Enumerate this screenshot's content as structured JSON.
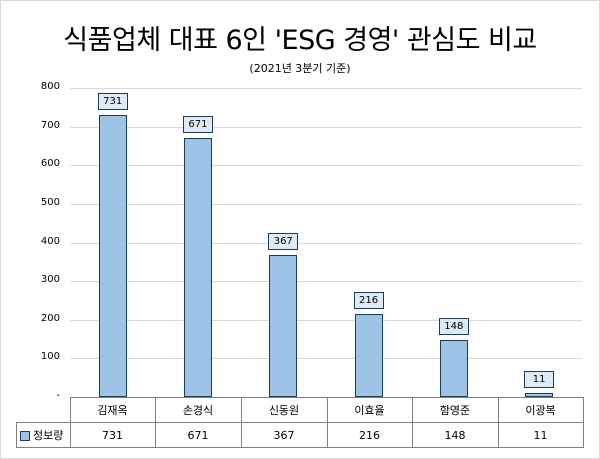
{
  "chart_data": {
    "type": "bar",
    "title": "식품업체 대표 6인 'ESG 경영' 관심도 비교",
    "subtitle": "(2021년 3분기 기준)",
    "categories": [
      "김재옥",
      "손경식",
      "신동원",
      "이효율",
      "함영준",
      "이광복"
    ],
    "series": [
      {
        "name": "정보량",
        "values": [
          731,
          671,
          367,
          216,
          148,
          11
        ],
        "color": "#9dc3e6"
      }
    ],
    "xlabel": "",
    "ylabel": "",
    "ylim": [
      0,
      800
    ],
    "yticks": [
      "-",
      "100",
      "200",
      "300",
      "400",
      "500",
      "600",
      "700",
      "800"
    ],
    "grid": true,
    "legend_position": "data-table",
    "data_labels": true
  },
  "header": {
    "title": "식품업체 대표 6인 'ESG 경영' 관심도 비교",
    "subtitle": "(2021년 3분기 기준)"
  },
  "table": {
    "series_label": "정보량",
    "categories": [
      "김재옥",
      "손경식",
      "신동원",
      "이효율",
      "함영준",
      "이광복"
    ],
    "values": [
      "731",
      "671",
      "367",
      "216",
      "148",
      "11"
    ]
  }
}
